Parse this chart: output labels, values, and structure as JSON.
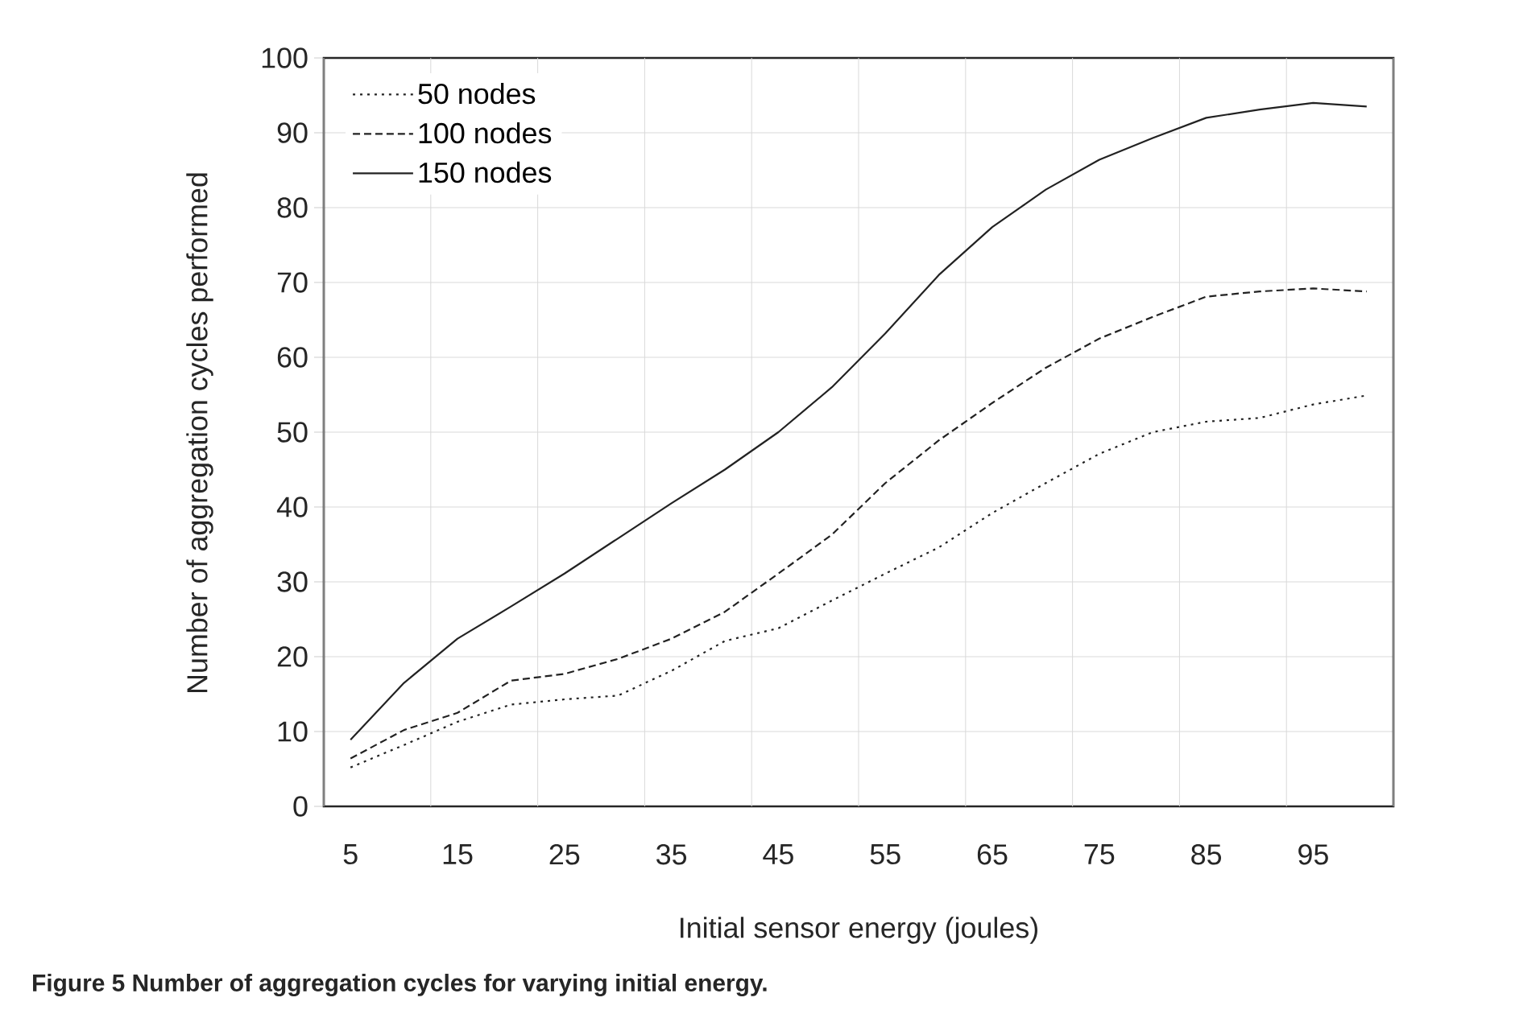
{
  "chart_data": {
    "type": "line",
    "xlabel": "Initial sensor energy (joules)",
    "ylabel": "Number of aggregation cycles performed",
    "annotations": [
      "Figure 5 Number of aggregation cycles for varying initial energy."
    ],
    "categories": [
      "5",
      null,
      "15",
      null,
      "25",
      null,
      "35",
      null,
      "45",
      null,
      "55",
      null,
      "65",
      null,
      "75",
      null,
      "85",
      null,
      "95",
      null
    ],
    "series": [
      {
        "name": "50 nodes",
        "color": "#222222",
        "line_style": "dotted",
        "values": [
          5.2,
          8.2,
          11.3,
          13.6,
          14.3,
          14.8,
          18.1,
          22.1,
          23.8,
          27.5,
          31.1,
          34.6,
          39.2,
          43.2,
          47.1,
          50.0,
          51.4,
          51.9,
          53.7,
          54.9
        ]
      },
      {
        "name": "100 nodes",
        "color": "#222222",
        "line_style": "dashed",
        "values": [
          6.4,
          10.2,
          12.5,
          16.8,
          17.7,
          19.7,
          22.4,
          26.0,
          31.1,
          36.3,
          43.2,
          48.9,
          53.9,
          58.6,
          62.5,
          65.4,
          68.1,
          68.8,
          69.2,
          68.8
        ]
      },
      {
        "name": "150 nodes",
        "color": "#222222",
        "line_style": "solid",
        "values": [
          8.9,
          16.5,
          22.4,
          26.7,
          31.1,
          35.8,
          40.5,
          45.0,
          50.0,
          56.0,
          63.2,
          71.0,
          77.4,
          82.4,
          86.4,
          89.3,
          92.0,
          93.1,
          94.0,
          93.5
        ]
      }
    ],
    "ylim": [
      0,
      100
    ],
    "yticks": [
      0,
      10,
      20,
      30,
      40,
      50,
      60,
      70,
      80,
      90,
      100
    ],
    "grid": true,
    "legend": "top left",
    "marker": "none"
  }
}
